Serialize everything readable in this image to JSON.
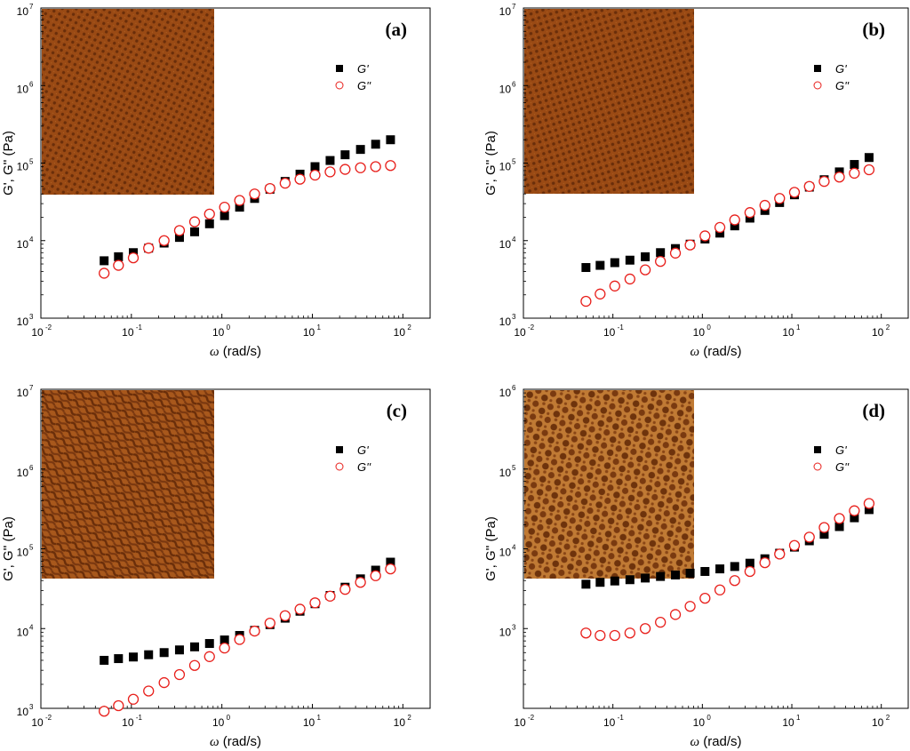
{
  "figure": {
    "colors": {
      "storage_marker": "#000000",
      "loss_marker": "#e8201c",
      "axis": "#000000",
      "inset_base": "#9a4a14",
      "inset_dark": "#6a2e0a",
      "inset_light": "#c57a32"
    }
  },
  "chart_data": [
    {
      "type": "scatter",
      "panel_label": "(a)",
      "xlabel_symbol": "ω",
      "xlabel_units": " (rad/s)",
      "ylabel": "G', G'' (Pa)",
      "x_scale": "log",
      "y_scale": "log",
      "xlim": [
        0.01,
        200
      ],
      "ylim": [
        1000,
        10000000
      ],
      "x_ticks": [
        {
          "base": "10",
          "exp": "-2"
        },
        {
          "base": "10",
          "exp": "-1"
        },
        {
          "base": "10",
          "exp": "0"
        },
        {
          "base": "10",
          "exp": "1"
        },
        {
          "base": "10",
          "exp": "2"
        }
      ],
      "y_ticks": [
        {
          "base": "10",
          "exp": "3"
        },
        {
          "base": "10",
          "exp": "4"
        },
        {
          "base": "10",
          "exp": "5"
        },
        {
          "base": "10",
          "exp": "6"
        },
        {
          "base": "10",
          "exp": "7"
        }
      ],
      "legend": [
        "G'",
        "G''"
      ],
      "legend_position": "upper-right",
      "inset": {
        "position": "top-left",
        "pattern": "fine-lamellar"
      },
      "x": [
        0.05,
        0.072,
        0.105,
        0.155,
        0.23,
        0.34,
        0.5,
        0.73,
        1.07,
        1.57,
        2.3,
        3.4,
        5.0,
        7.3,
        10.7,
        15.7,
        23,
        34,
        50,
        73
      ],
      "series": [
        {
          "name": "G'",
          "marker": "filled-square",
          "values": [
            5500,
            6200,
            7000,
            8000,
            9300,
            11000,
            13000,
            16500,
            21000,
            27000,
            35000,
            46000,
            58000,
            72000,
            90000,
            108000,
            128000,
            150000,
            175000,
            200000
          ]
        },
        {
          "name": "G''",
          "marker": "open-circle",
          "values": [
            3800,
            4800,
            6000,
            8000,
            10000,
            13500,
            17500,
            22000,
            27000,
            33000,
            40000,
            47000,
            55000,
            62000,
            70000,
            77000,
            83000,
            87000,
            90000,
            93000
          ]
        }
      ]
    },
    {
      "type": "scatter",
      "panel_label": "(b)",
      "xlabel_symbol": "ω",
      "xlabel_units": " (rad/s)",
      "ylabel": "G', G'' (Pa)",
      "x_scale": "log",
      "y_scale": "log",
      "xlim": [
        0.01,
        200
      ],
      "ylim": [
        1000,
        10000000
      ],
      "x_ticks": [
        {
          "base": "10",
          "exp": "-2"
        },
        {
          "base": "10",
          "exp": "-1"
        },
        {
          "base": "10",
          "exp": "0"
        },
        {
          "base": "10",
          "exp": "1"
        },
        {
          "base": "10",
          "exp": "2"
        }
      ],
      "y_ticks": [
        {
          "base": "10",
          "exp": "3"
        },
        {
          "base": "10",
          "exp": "4"
        },
        {
          "base": "10",
          "exp": "5"
        },
        {
          "base": "10",
          "exp": "6"
        },
        {
          "base": "10",
          "exp": "7"
        }
      ],
      "legend": [
        "G'",
        "G''"
      ],
      "legend_position": "upper-right",
      "inset": {
        "position": "top-left",
        "pattern": "fine-lamellar"
      },
      "x": [
        0.05,
        0.072,
        0.105,
        0.155,
        0.23,
        0.34,
        0.5,
        0.73,
        1.07,
        1.57,
        2.3,
        3.4,
        5.0,
        7.3,
        10.7,
        15.7,
        23,
        34,
        50,
        73
      ],
      "series": [
        {
          "name": "G'",
          "marker": "filled-square",
          "values": [
            4500,
            4800,
            5200,
            5600,
            6200,
            7000,
            7900,
            9000,
            10500,
            12500,
            15500,
            19500,
            24500,
            31000,
            39000,
            49000,
            61000,
            77000,
            96000,
            118000
          ]
        },
        {
          "name": "G''",
          "marker": "open-circle",
          "values": [
            1650,
            2050,
            2600,
            3200,
            4200,
            5400,
            6900,
            8800,
            11500,
            14800,
            18500,
            23000,
            28500,
            35000,
            42000,
            50000,
            58000,
            66000,
            74000,
            82000
          ]
        }
      ]
    },
    {
      "type": "scatter",
      "panel_label": "(c)",
      "xlabel_symbol": "ω",
      "xlabel_units": " (rad/s)",
      "ylabel": "G', G'' (Pa)",
      "x_scale": "log",
      "y_scale": "log",
      "xlim": [
        0.01,
        200
      ],
      "ylim": [
        1000,
        10000000
      ],
      "x_ticks": [
        {
          "base": "10",
          "exp": "-2"
        },
        {
          "base": "10",
          "exp": "-1"
        },
        {
          "base": "10",
          "exp": "0"
        },
        {
          "base": "10",
          "exp": "1"
        },
        {
          "base": "10",
          "exp": "2"
        }
      ],
      "y_ticks": [
        {
          "base": "10",
          "exp": "3"
        },
        {
          "base": "10",
          "exp": "4"
        },
        {
          "base": "10",
          "exp": "5"
        },
        {
          "base": "10",
          "exp": "6"
        },
        {
          "base": "10",
          "exp": "7"
        }
      ],
      "legend": [
        "G'",
        "G''"
      ],
      "legend_position": "upper-right",
      "inset": {
        "position": "top-left",
        "pattern": "worm-like"
      },
      "x": [
        0.05,
        0.072,
        0.105,
        0.155,
        0.23,
        0.34,
        0.5,
        0.73,
        1.07,
        1.57,
        2.3,
        3.4,
        5.0,
        7.3,
        10.7,
        15.7,
        23,
        34,
        50,
        73
      ],
      "series": [
        {
          "name": "G'",
          "marker": "filled-square",
          "values": [
            4000,
            4200,
            4400,
            4700,
            5000,
            5400,
            5900,
            6500,
            7200,
            8200,
            9500,
            11200,
            13500,
            16500,
            20500,
            26000,
            33000,
            42000,
            54000,
            68000
          ]
        },
        {
          "name": "G''",
          "marker": "open-circle",
          "values": [
            920,
            1080,
            1300,
            1650,
            2100,
            2650,
            3450,
            4450,
            5700,
            7300,
            9300,
            11700,
            14500,
            17500,
            21000,
            25500,
            31000,
            38000,
            46000,
            56000
          ]
        }
      ]
    },
    {
      "type": "scatter",
      "panel_label": "(d)",
      "xlabel_symbol": "ω",
      "xlabel_units": " (rad/s)",
      "ylabel": "G', G'' (Pa)",
      "x_scale": "log",
      "y_scale": "log",
      "xlim": [
        0.01,
        200
      ],
      "ylim": [
        100,
        1000000
      ],
      "x_ticks": [
        {
          "base": "10",
          "exp": "-2"
        },
        {
          "base": "10",
          "exp": "-1"
        },
        {
          "base": "10",
          "exp": "0"
        },
        {
          "base": "10",
          "exp": "1"
        },
        {
          "base": "10",
          "exp": "2"
        }
      ],
      "y_ticks": [
        {
          "base": "10",
          "exp": "3"
        },
        {
          "base": "10",
          "exp": "4"
        },
        {
          "base": "10",
          "exp": "5"
        },
        {
          "base": "10",
          "exp": "6"
        }
      ],
      "legend": [
        "G'",
        "G''"
      ],
      "legend_position": "upper-right",
      "inset": {
        "position": "top-left",
        "pattern": "coarse-spheres"
      },
      "x": [
        0.05,
        0.072,
        0.105,
        0.155,
        0.23,
        0.34,
        0.5,
        0.73,
        1.07,
        1.57,
        2.3,
        3.4,
        5.0,
        7.3,
        10.7,
        15.7,
        23,
        34,
        50,
        73
      ],
      "series": [
        {
          "name": "G'",
          "marker": "filled-square",
          "values": [
            3600,
            3800,
            3950,
            4100,
            4300,
            4500,
            4700,
            4950,
            5200,
            5600,
            6000,
            6600,
            7500,
            8800,
            10500,
            12600,
            15200,
            19000,
            24500,
            31000
          ]
        },
        {
          "name": "G''",
          "marker": "open-circle",
          "values": [
            880,
            820,
            820,
            880,
            1000,
            1200,
            1500,
            1900,
            2400,
            3050,
            4000,
            5200,
            6700,
            8600,
            11000,
            14000,
            18500,
            24000,
            30000,
            37000
          ]
        }
      ]
    }
  ]
}
